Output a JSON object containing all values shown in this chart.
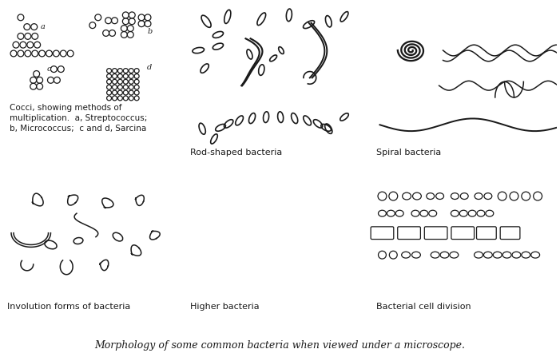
{
  "title": "Morphology of some common bacteria when viewed under a microscope.",
  "background_color": "#ffffff",
  "line_color": "#1a1a1a",
  "figsize": [
    7.01,
    4.47
  ],
  "dpi": 100,
  "captions": {
    "cocci": "Cocci, showing methods of\nmultiplication.  a, Streptococcus;\nb, Micrococcus;  c and d, Sarcina",
    "rod": "Rod-shaped bacteria",
    "spiral": "Spiral bacteria",
    "involution": "Involution forms of bacteria",
    "higher": "Higher bacteria",
    "bacterial": "Bacterial cell division"
  }
}
